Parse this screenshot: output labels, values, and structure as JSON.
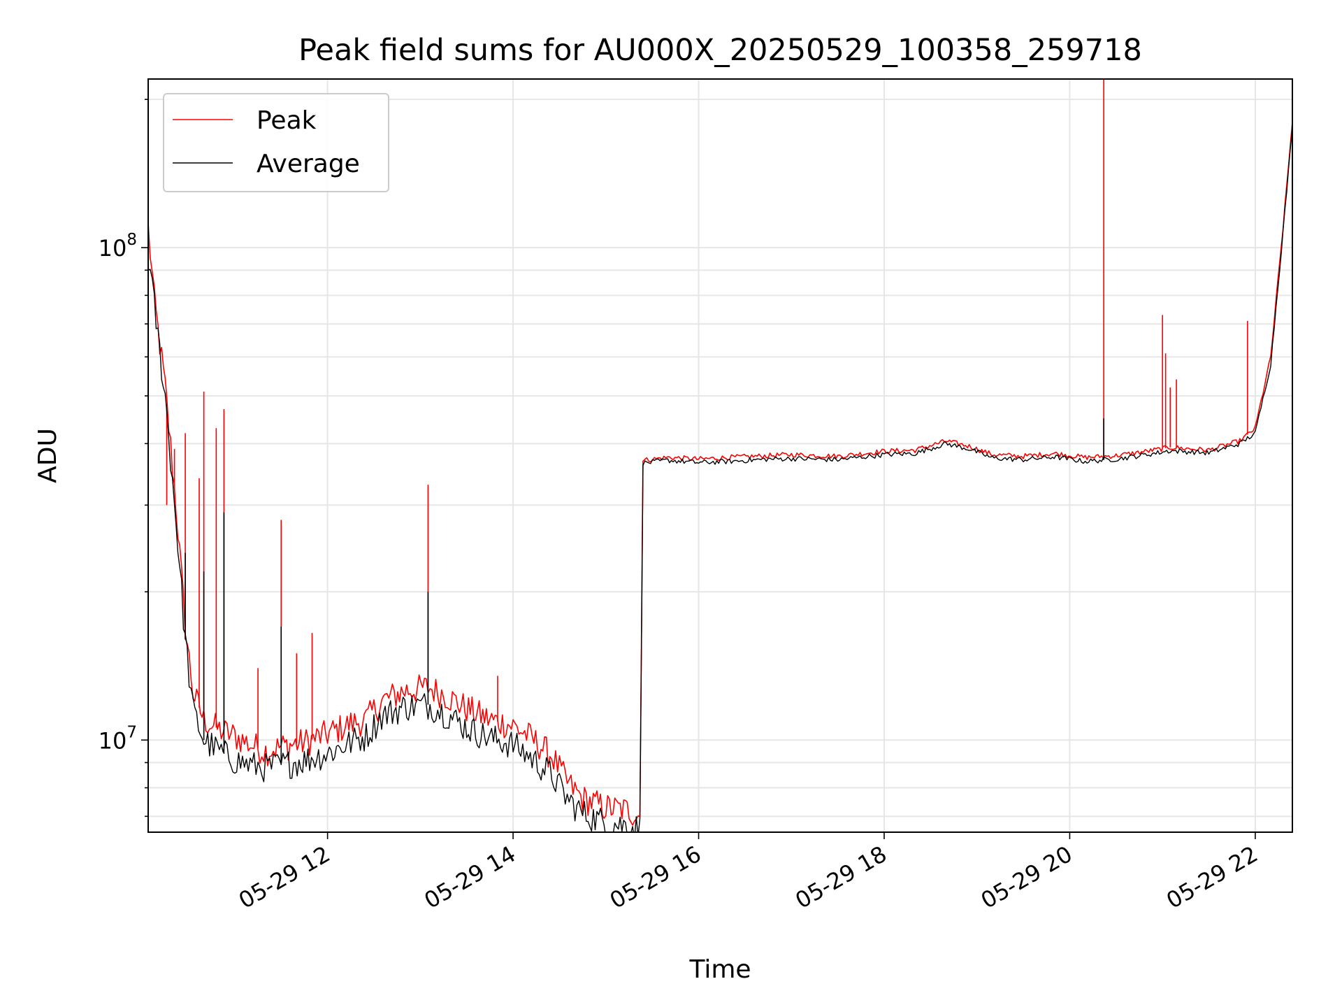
{
  "chart_data": {
    "type": "line",
    "title": "Peak field sums for AU000X_20250529_100358_259718",
    "xlabel": "Time",
    "ylabel": "ADU",
    "y_scale": "log",
    "xlim": [
      "2025-05-29 10:04",
      "2025-05-29 22:24"
    ],
    "ylim": [
      6500000,
      220000000
    ],
    "x_ticks": [
      "05-29 12",
      "05-29 14",
      "05-29 16",
      "05-29 18",
      "05-29 20",
      "05-29 22"
    ],
    "y_ticks": [
      {
        "base": "10",
        "exp": "7"
      },
      {
        "base": "10",
        "exp": "8"
      }
    ],
    "grid": true,
    "legend_position": "upper-left",
    "series": [
      {
        "name": "Peak",
        "color": "#ff0000",
        "points": [
          [
            "2025-05-29 10:04",
            110000000
          ],
          [
            "2025-05-29 10:08",
            78000000
          ],
          [
            "2025-05-29 10:15",
            52000000
          ],
          [
            "2025-05-29 10:22",
            30000000
          ],
          [
            "2025-05-29 10:28",
            17000000
          ],
          [
            "2025-05-29 10:33",
            12500000
          ],
          [
            "2025-05-29 10:40",
            11000000
          ],
          [
            "2025-05-29 10:50",
            10500000
          ],
          [
            "2025-05-29 11:00",
            10200000
          ],
          [
            "2025-05-29 11:10",
            9800000
          ],
          [
            "2025-05-29 11:20",
            9500000
          ],
          [
            "2025-05-29 11:30",
            9700000
          ],
          [
            "2025-05-29 11:45",
            9900000
          ],
          [
            "2025-05-29 12:00",
            10300000
          ],
          [
            "2025-05-29 12:15",
            10800000
          ],
          [
            "2025-05-29 12:25",
            11000000
          ],
          [
            "2025-05-29 12:35",
            12000000
          ],
          [
            "2025-05-29 12:50",
            12600000
          ],
          [
            "2025-05-29 13:05",
            12800000
          ],
          [
            "2025-05-29 13:15",
            12400000
          ],
          [
            "2025-05-29 13:30",
            11600000
          ],
          [
            "2025-05-29 13:45",
            11000000
          ],
          [
            "2025-05-29 14:00",
            10700000
          ],
          [
            "2025-05-29 14:10",
            10200000
          ],
          [
            "2025-05-29 14:25",
            9300000
          ],
          [
            "2025-05-29 14:35",
            8200000
          ],
          [
            "2025-05-29 14:45",
            7600000
          ],
          [
            "2025-05-29 15:00",
            7300000
          ],
          [
            "2025-05-29 15:15",
            7200000
          ],
          [
            "2025-05-29 15:22",
            7000000
          ],
          [
            "2025-05-29 15:24",
            37000000
          ],
          [
            "2025-05-29 15:40",
            37500000
          ],
          [
            "2025-05-29 16:00",
            37200000
          ],
          [
            "2025-05-29 16:20",
            37500000
          ],
          [
            "2025-05-29 16:45",
            37800000
          ],
          [
            "2025-05-29 17:00",
            38000000
          ],
          [
            "2025-05-29 17:30",
            37700000
          ],
          [
            "2025-05-29 18:00",
            38600000
          ],
          [
            "2025-05-29 18:20",
            38800000
          ],
          [
            "2025-05-29 18:40",
            40500000
          ],
          [
            "2025-05-29 18:55",
            39500000
          ],
          [
            "2025-05-29 19:10",
            38000000
          ],
          [
            "2025-05-29 19:30",
            37700000
          ],
          [
            "2025-05-29 19:50",
            38200000
          ],
          [
            "2025-05-29 20:10",
            37500000
          ],
          [
            "2025-05-29 20:30",
            37800000
          ],
          [
            "2025-05-29 20:50",
            38600000
          ],
          [
            "2025-05-29 21:05",
            39300000
          ],
          [
            "2025-05-29 21:30",
            38800000
          ],
          [
            "2025-05-29 21:50",
            40500000
          ],
          [
            "2025-05-29 22:00",
            43000000
          ],
          [
            "2025-05-29 22:10",
            60000000
          ],
          [
            "2025-05-29 22:18",
            110000000
          ],
          [
            "2025-05-29 22:24",
            180000000
          ]
        ],
        "spikes": [
          [
            "2025-05-29 10:16",
            30000000
          ],
          [
            "2025-05-29 10:21",
            39000000
          ],
          [
            "2025-05-29 10:28",
            42000000
          ],
          [
            "2025-05-29 10:37",
            34000000
          ],
          [
            "2025-05-29 10:40",
            51000000
          ],
          [
            "2025-05-29 10:48",
            43000000
          ],
          [
            "2025-05-29 10:53",
            47000000
          ],
          [
            "2025-05-29 11:15",
            14000000
          ],
          [
            "2025-05-29 11:30",
            28000000
          ],
          [
            "2025-05-29 11:40",
            15000000
          ],
          [
            "2025-05-29 11:50",
            16500000
          ],
          [
            "2025-05-29 13:05",
            33000000
          ],
          [
            "2025-05-29 13:50",
            13500000
          ],
          [
            "2025-05-29 20:22",
            220000000
          ],
          [
            "2025-05-29 21:00",
            73000000
          ],
          [
            "2025-05-29 21:02",
            61000000
          ],
          [
            "2025-05-29 21:05",
            52000000
          ],
          [
            "2025-05-29 21:09",
            54000000
          ],
          [
            "2025-05-29 21:55",
            71000000
          ]
        ]
      },
      {
        "name": "Average",
        "color": "#000000",
        "points": [
          [
            "2025-05-29 10:04",
            95000000
          ],
          [
            "2025-05-29 10:08",
            76000000
          ],
          [
            "2025-05-29 10:15",
            50000000
          ],
          [
            "2025-05-29 10:22",
            28000000
          ],
          [
            "2025-05-29 10:28",
            16000000
          ],
          [
            "2025-05-29 10:33",
            11500000
          ],
          [
            "2025-05-29 10:40",
            10000000
          ],
          [
            "2025-05-29 10:50",
            9500000
          ],
          [
            "2025-05-29 11:00",
            9100000
          ],
          [
            "2025-05-29 11:10",
            8900000
          ],
          [
            "2025-05-29 11:20",
            8800000
          ],
          [
            "2025-05-29 11:30",
            8900000
          ],
          [
            "2025-05-29 11:45",
            9100000
          ],
          [
            "2025-05-29 12:00",
            9400000
          ],
          [
            "2025-05-29 12:15",
            9900000
          ],
          [
            "2025-05-29 12:25",
            10200000
          ],
          [
            "2025-05-29 12:35",
            11200000
          ],
          [
            "2025-05-29 12:50",
            11700000
          ],
          [
            "2025-05-29 13:05",
            11800000
          ],
          [
            "2025-05-29 13:15",
            11400000
          ],
          [
            "2025-05-29 13:30",
            10600000
          ],
          [
            "2025-05-29 13:45",
            10100000
          ],
          [
            "2025-05-29 14:00",
            9800000
          ],
          [
            "2025-05-29 14:10",
            9300000
          ],
          [
            "2025-05-29 14:25",
            8500000
          ],
          [
            "2025-05-29 14:35",
            7600000
          ],
          [
            "2025-05-29 14:45",
            7100000
          ],
          [
            "2025-05-29 15:00",
            6800000
          ],
          [
            "2025-05-29 15:15",
            6700000
          ],
          [
            "2025-05-29 15:22",
            6600000
          ],
          [
            "2025-05-29 15:24",
            36500000
          ],
          [
            "2025-05-29 15:40",
            37000000
          ],
          [
            "2025-05-29 16:00",
            36600000
          ],
          [
            "2025-05-29 16:20",
            36800000
          ],
          [
            "2025-05-29 16:45",
            37200000
          ],
          [
            "2025-05-29 17:00",
            37300000
          ],
          [
            "2025-05-29 17:30",
            37100000
          ],
          [
            "2025-05-29 18:00",
            38000000
          ],
          [
            "2025-05-29 18:20",
            38200000
          ],
          [
            "2025-05-29 18:40",
            40000000
          ],
          [
            "2025-05-29 18:55",
            39000000
          ],
          [
            "2025-05-29 19:10",
            37400000
          ],
          [
            "2025-05-29 19:30",
            37100000
          ],
          [
            "2025-05-29 19:50",
            37600000
          ],
          [
            "2025-05-29 20:10",
            36800000
          ],
          [
            "2025-05-29 20:30",
            37200000
          ],
          [
            "2025-05-29 20:50",
            38000000
          ],
          [
            "2025-05-29 21:05",
            38700000
          ],
          [
            "2025-05-29 21:30",
            38300000
          ],
          [
            "2025-05-29 21:50",
            40000000
          ],
          [
            "2025-05-29 22:00",
            42000000
          ],
          [
            "2025-05-29 22:10",
            58000000
          ],
          [
            "2025-05-29 22:18",
            108000000
          ],
          [
            "2025-05-29 22:24",
            175000000
          ]
        ],
        "spikes": [
          [
            "2025-05-29 10:28",
            24000000
          ],
          [
            "2025-05-29 10:40",
            22000000
          ],
          [
            "2025-05-29 10:53",
            29000000
          ],
          [
            "2025-05-29 11:30",
            17000000
          ],
          [
            "2025-05-29 13:05",
            20000000
          ],
          [
            "2025-05-29 20:22",
            45000000
          ]
        ]
      }
    ]
  }
}
